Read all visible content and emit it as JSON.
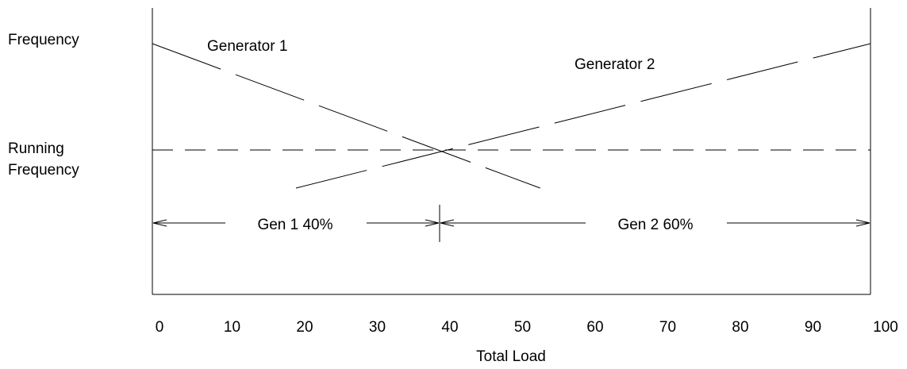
{
  "chart_data": {
    "type": "line",
    "title": "",
    "xlabel": "Total Load",
    "ylabel_lines": [
      "Frequency"
    ],
    "running_label_lines": [
      "Running",
      "Frequency"
    ],
    "x_ticks": [
      "0",
      "10",
      "20",
      "30",
      "40",
      "50",
      "60",
      "70",
      "80",
      "90",
      "100"
    ],
    "xlim": [
      0,
      100
    ],
    "grid": false,
    "series": [
      {
        "name": "Generator 1",
        "style": "dashed",
        "points": [
          [
            0,
            1.0
          ],
          [
            54,
            0.0
          ]
        ]
      },
      {
        "name": "Generator 2",
        "style": "dashed",
        "points": [
          [
            20,
            0.0
          ],
          [
            100,
            1.0
          ]
        ]
      }
    ],
    "running_frequency_line": {
      "style": "dashed"
    },
    "intersection_load": 40,
    "share_arrows": [
      {
        "label": "Gen 1 40%",
        "from": 0,
        "to": 40
      },
      {
        "label": "Gen 2 60%",
        "from": 40,
        "to": 100
      }
    ]
  }
}
